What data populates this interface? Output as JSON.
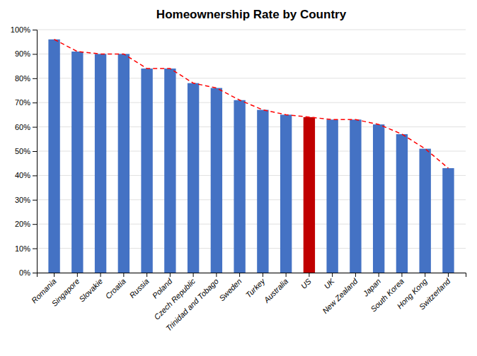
{
  "chart_data": {
    "type": "bar",
    "title": "Homeownership Rate by Country",
    "categories": [
      "Romania",
      "Singapore",
      "Slovakie",
      "Croatia",
      "Russia",
      "Poland",
      "Czech Republic",
      "Trinidad and Tobago",
      "Sweden",
      "Turkey",
      "Australia",
      "US",
      "UK",
      "New Zealand",
      "Japan",
      "South Korea",
      "Hong Kong",
      "Switzerland"
    ],
    "series": [
      {
        "type": "bar",
        "colors": [
          "#4472C4",
          "#4472C4",
          "#4472C4",
          "#4472C4",
          "#4472C4",
          "#4472C4",
          "#4472C4",
          "#4472C4",
          "#4472C4",
          "#4472C4",
          "#4472C4",
          "#C00000",
          "#4472C4",
          "#4472C4",
          "#4472C4",
          "#4472C4",
          "#4472C4",
          "#4472C4"
        ],
        "values": [
          96,
          91,
          90,
          90,
          84,
          84,
          78,
          76,
          71,
          67,
          65,
          64,
          63,
          63,
          61,
          57,
          51,
          43
        ]
      },
      {
        "type": "line",
        "color": "#FF0000",
        "line_style": "dashed",
        "values": [
          96,
          91,
          90,
          90,
          84,
          84,
          78,
          76,
          71,
          67,
          65,
          64,
          63,
          63,
          61,
          57,
          51,
          43
        ]
      }
    ],
    "ylim": [
      0,
      100
    ],
    "yticks": [
      {
        "value": 0,
        "label": "0%"
      },
      {
        "value": 10,
        "label": "10%"
      },
      {
        "value": 20,
        "label": "20%"
      },
      {
        "value": 30,
        "label": "30%"
      },
      {
        "value": 40,
        "label": "40%"
      },
      {
        "value": 50,
        "label": "50%"
      },
      {
        "value": 60,
        "label": "60%"
      },
      {
        "value": 70,
        "label": "70%"
      },
      {
        "value": 80,
        "label": "80%"
      },
      {
        "value": 90,
        "label": "90%"
      },
      {
        "value": 100,
        "label": "100%"
      }
    ],
    "grid": true
  }
}
